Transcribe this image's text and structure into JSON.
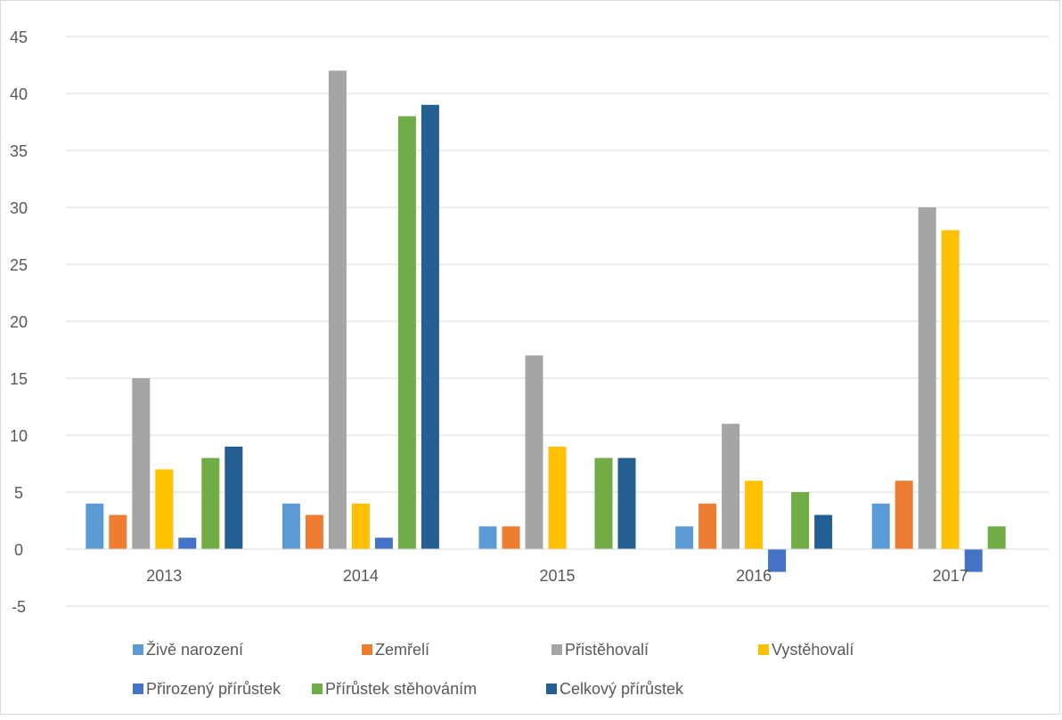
{
  "chart_data": {
    "type": "bar",
    "title": "",
    "xlabel": "",
    "ylabel": "",
    "categories": [
      "2013",
      "2014",
      "2015",
      "2016",
      "2017"
    ],
    "ylim": [
      -5,
      45
    ],
    "yticks": [
      45,
      40,
      35,
      30,
      25,
      20,
      15,
      10,
      5,
      0,
      -5
    ],
    "grid": true,
    "legend_position": "bottom",
    "series": [
      {
        "name": "Živě narození",
        "color": "#5b9bd5",
        "values": [
          4,
          4,
          2,
          2,
          4
        ]
      },
      {
        "name": "Zemřelí",
        "color": "#ed7d31",
        "values": [
          3,
          3,
          2,
          4,
          6
        ]
      },
      {
        "name": "Přistěhovalí",
        "color": "#a5a5a5",
        "values": [
          15,
          42,
          17,
          11,
          30
        ]
      },
      {
        "name": "Vystěhovalí",
        "color": "#ffc000",
        "values": [
          7,
          4,
          9,
          6,
          28
        ]
      },
      {
        "name": "Přirozený přírůstek",
        "color": "#4472c4",
        "values": [
          1,
          1,
          0,
          -2,
          -2
        ]
      },
      {
        "name": "Přírůstek stěhováním",
        "color": "#70ad47",
        "values": [
          8,
          38,
          8,
          5,
          2
        ]
      },
      {
        "name": "Celkový přírůstek",
        "color": "#255e91",
        "values": [
          9,
          39,
          8,
          3,
          0
        ]
      }
    ]
  }
}
